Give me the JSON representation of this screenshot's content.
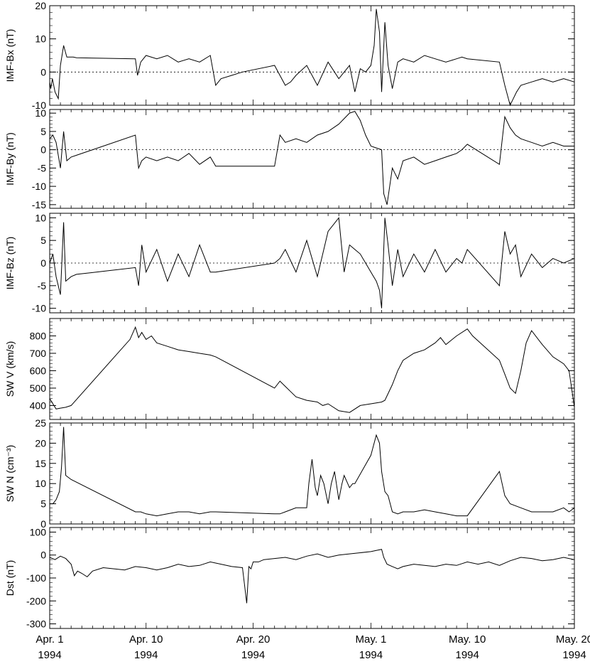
{
  "chart_data": [
    {
      "type": "line",
      "ylabel": "IMF-Bx (nT)",
      "ylim": [
        -10,
        20
      ],
      "yticks": [
        -10,
        0,
        10,
        20
      ],
      "zero_line": true,
      "x_unit": "day",
      "x": [
        0,
        0.1,
        0.25,
        0.5,
        0.8,
        1.0,
        1.3,
        1.6,
        1.8,
        2.0,
        2.2,
        2.5,
        8,
        8.2,
        8.5,
        9,
        10,
        11,
        12,
        13,
        14,
        15,
        15.5,
        16,
        17,
        18,
        21,
        22,
        22.5,
        23,
        24,
        25,
        26,
        27,
        28,
        28.5,
        29,
        29.5,
        30,
        30.3,
        30.5,
        30.8,
        31,
        31.3,
        31.6,
        32,
        32.5,
        33,
        34,
        35,
        36,
        37,
        38,
        38.5,
        39,
        42,
        42.5,
        43,
        43.3,
        43.6,
        44,
        45,
        46,
        47,
        48,
        49
      ],
      "values": [
        -3,
        -5,
        -2,
        -6,
        -8,
        2,
        8,
        4.5,
        4.5,
        4.5,
        4.5,
        4.3,
        4.0,
        -1,
        3,
        5,
        4,
        5,
        3,
        4,
        3,
        5,
        -4,
        -2,
        -1,
        0,
        2,
        -4,
        -3,
        -1,
        2,
        -4,
        3,
        -2,
        2,
        -6,
        1,
        0,
        2,
        8,
        19,
        12,
        -6,
        15,
        2,
        -5,
        3,
        4,
        3,
        5,
        4,
        3,
        4,
        4.5,
        4,
        3,
        -4,
        -10,
        -8,
        -6,
        -4,
        -3,
        -2,
        -3,
        -2,
        -3
      ]
    },
    {
      "type": "line",
      "ylabel": "IMF-By (nT)",
      "ylim": [
        -16,
        11
      ],
      "yticks": [
        -15,
        -10,
        -5,
        0,
        5,
        10
      ],
      "zero_line": true,
      "x_unit": "day",
      "x": [
        0,
        0.3,
        0.6,
        1.0,
        1.3,
        1.6,
        2.0,
        2.5,
        8,
        8.3,
        8.6,
        9,
        10,
        11,
        12,
        13,
        14,
        15,
        15.5,
        21,
        21.5,
        22,
        23,
        24,
        25,
        26,
        27,
        28,
        28.5,
        29,
        29.5,
        30,
        30.5,
        31,
        31.2,
        31.5,
        32,
        32.5,
        33,
        34,
        35,
        36,
        37,
        38,
        38.5,
        39,
        42,
        42.5,
        43,
        43.5,
        44,
        45,
        46,
        47,
        48,
        49
      ],
      "values": [
        3,
        4,
        2,
        -5,
        5,
        -3,
        -2,
        -1.5,
        4,
        -5,
        -3,
        -2,
        -3,
        -2,
        -3,
        -1,
        -4,
        -2,
        -4.5,
        -4.5,
        4,
        2,
        3,
        2,
        4,
        5,
        7,
        10,
        10.5,
        8,
        4,
        1,
        0.5,
        0,
        -12,
        -15,
        -5,
        -8,
        -3,
        -2,
        -4,
        -3,
        -2,
        -1,
        0,
        1.5,
        -4,
        9,
        6,
        4,
        3,
        2,
        1,
        2,
        1,
        1
      ]
    },
    {
      "type": "line",
      "ylabel": "IMF-Bz (nT)",
      "ylim": [
        -11,
        11
      ],
      "yticks": [
        -10,
        -5,
        0,
        5,
        10
      ],
      "zero_line": true,
      "x_unit": "day",
      "x": [
        0,
        0.3,
        0.6,
        1.0,
        1.3,
        1.5,
        2.0,
        2.5,
        8,
        8.3,
        8.6,
        9,
        10,
        11,
        12,
        13,
        14,
        15,
        15.5,
        21,
        21.5,
        22,
        23,
        24,
        25,
        26,
        27,
        27.5,
        28,
        28.5,
        29,
        29.5,
        30,
        30.5,
        30.8,
        31,
        31.3,
        31.6,
        32,
        32.5,
        33,
        34,
        35,
        36,
        37,
        38,
        38.5,
        39,
        42,
        42.5,
        43,
        43.5,
        44,
        45,
        46,
        47,
        48,
        49
      ],
      "values": [
        0,
        2,
        -3,
        -7,
        9,
        -4,
        -3,
        -2.5,
        -1,
        -5,
        4,
        -2,
        3,
        -4,
        2,
        -3,
        4,
        -2,
        -2,
        0,
        1,
        3,
        -2,
        5,
        -3,
        7,
        10,
        -2,
        4,
        3,
        2,
        0,
        -2,
        -4,
        -6,
        -10,
        10,
        4,
        -5,
        3,
        -3,
        2,
        -2,
        3,
        -2,
        1,
        0,
        3,
        -5,
        7,
        2,
        4,
        -3,
        2,
        -1,
        1,
        0,
        1
      ]
    },
    {
      "type": "line",
      "ylabel": "SW V (km/s)",
      "ylim": [
        320,
        900
      ],
      "yticks": [
        400,
        500,
        600,
        700,
        800
      ],
      "zero_line": false,
      "x_unit": "day",
      "x": [
        0,
        0.3,
        0.6,
        1.0,
        1.5,
        2.0,
        7.5,
        8,
        8.3,
        8.6,
        9,
        9.5,
        10,
        11,
        12,
        13,
        14,
        15,
        15.5,
        21,
        21.5,
        22,
        22.5,
        23,
        24,
        25,
        25.5,
        26,
        27,
        28,
        29,
        30,
        30.5,
        31,
        31.3,
        32,
        32.5,
        33,
        34,
        35,
        36,
        36.5,
        37,
        38,
        39,
        39.5,
        42,
        42.5,
        43,
        43.5,
        44,
        44.5,
        45,
        46,
        47,
        48,
        48.5,
        49
      ],
      "values": [
        440,
        410,
        380,
        385,
        390,
        400,
        780,
        850,
        790,
        820,
        780,
        800,
        760,
        740,
        720,
        710,
        700,
        690,
        680,
        500,
        540,
        510,
        480,
        450,
        430,
        420,
        400,
        410,
        370,
        360,
        400,
        410,
        415,
        420,
        430,
        520,
        600,
        660,
        700,
        720,
        760,
        790,
        750,
        800,
        840,
        800,
        660,
        580,
        500,
        470,
        600,
        760,
        830,
        750,
        680,
        640,
        600,
        390
      ]
    },
    {
      "type": "line",
      "ylabel": "SW N (cm⁻³)",
      "ylim": [
        0,
        25
      ],
      "yticks": [
        0,
        5,
        10,
        15,
        20,
        25
      ],
      "zero_line": false,
      "x_unit": "day",
      "x": [
        0,
        0.3,
        0.6,
        0.9,
        1.1,
        1.3,
        1.5,
        2.0,
        8,
        8.5,
        9,
        10,
        11,
        12,
        13,
        14,
        15,
        15.5,
        21,
        21.5,
        22,
        23,
        24,
        24.2,
        24.5,
        24.8,
        25,
        25.3,
        25.6,
        26,
        26.3,
        26.6,
        27,
        27.3,
        27.5,
        28,
        28.3,
        28.5,
        30,
        30.5,
        30.8,
        31,
        31.3,
        31.6,
        32,
        32.5,
        33,
        34,
        35,
        36,
        37,
        38,
        39,
        42,
        42.5,
        43,
        44,
        45,
        46,
        47,
        48,
        48.5,
        49
      ],
      "values": [
        5,
        5,
        6,
        8,
        14,
        24,
        12,
        11,
        3,
        3,
        2.5,
        2,
        2.5,
        3,
        3,
        2.5,
        3,
        3,
        2.5,
        2.5,
        3,
        4,
        4,
        10,
        16,
        9,
        7,
        12,
        10,
        5,
        10,
        13,
        6,
        10,
        12,
        9,
        10,
        10,
        17,
        22,
        20,
        13,
        8,
        7,
        3,
        2.5,
        3,
        3,
        3.5,
        3,
        2.5,
        2,
        2,
        13,
        7,
        5,
        4,
        3,
        3,
        3,
        4,
        3,
        4
      ]
    },
    {
      "type": "line",
      "ylabel": "Dst (nT)",
      "ylim": [
        -320,
        120
      ],
      "yticks": [
        -300,
        -200,
        -100,
        0,
        100
      ],
      "zero_line": false,
      "x_unit": "day",
      "x": [
        0,
        0.5,
        1.0,
        1.5,
        2.0,
        2.3,
        2.6,
        3,
        3.5,
        4,
        5,
        6,
        7,
        8,
        9,
        10,
        11,
        12,
        13,
        14,
        15,
        16,
        17,
        18,
        18.4,
        18.6,
        18.8,
        19,
        19.5,
        20,
        21,
        22,
        23,
        24,
        25,
        26,
        27,
        28,
        29,
        30,
        30.5,
        31,
        31.2,
        31.5,
        32,
        32.5,
        33,
        34,
        35,
        36,
        37,
        38,
        39,
        40,
        41,
        42,
        43,
        44,
        45,
        46,
        47,
        48,
        49
      ],
      "values": [
        -10,
        -20,
        -5,
        -15,
        -40,
        -90,
        -70,
        -80,
        -95,
        -70,
        -55,
        -60,
        -65,
        -50,
        -55,
        -65,
        -55,
        -40,
        -50,
        -45,
        -30,
        -40,
        -50,
        -55,
        -210,
        -50,
        -60,
        -30,
        -30,
        -20,
        -15,
        -10,
        -20,
        -5,
        5,
        -10,
        0,
        5,
        10,
        15,
        20,
        25,
        -10,
        -40,
        -50,
        -60,
        -50,
        -40,
        -45,
        -50,
        -40,
        -45,
        -30,
        -40,
        -30,
        -45,
        -25,
        -10,
        -15,
        -25,
        -20,
        -10,
        -20
      ]
    }
  ],
  "x_axis": {
    "range_days": [
      0,
      49
    ],
    "major_ticks": [
      {
        "day": 0,
        "line1": "Apr. 1",
        "line2": "1994"
      },
      {
        "day": 9,
        "line1": "Apr. 10",
        "line2": "1994"
      },
      {
        "day": 19,
        "line1": "Apr. 20",
        "line2": "1994"
      },
      {
        "day": 30,
        "line1": "May. 1",
        "line2": "1994"
      },
      {
        "day": 39,
        "line1": "May. 10",
        "line2": "1994"
      },
      {
        "day": 49,
        "line1": "May. 20",
        "line2": "1994"
      }
    ]
  },
  "colors": {
    "line": "#000000",
    "background": "#ffffff"
  }
}
